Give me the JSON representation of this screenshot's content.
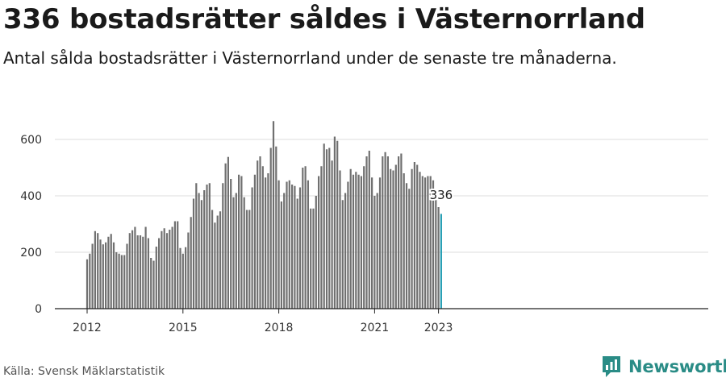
{
  "title": "336 bostadsrätter såldes i Västernorrland",
  "subtitle": "Antal sålda bostadsrätter i Västernorrland under de senaste tre månaderna.",
  "source": "Källa: Svensk Mäklarstatistik",
  "brand": {
    "name": "Newsworthy",
    "color": "#2a8c86"
  },
  "chart_data": {
    "type": "bar",
    "title": "336 bostadsrätter såldes i Västernorrland",
    "subtitle": "Antal sålda bostadsrätter i Västernorrland under de senaste tre månaderna.",
    "x_start": "2012-01",
    "x_ticks": [
      "2012",
      "2015",
      "2018",
      "2021",
      "2023"
    ],
    "y_ticks": [
      0,
      200,
      400,
      600
    ],
    "ylim": [
      0,
      680
    ],
    "grid": true,
    "bar_color": "#707070",
    "highlight_color": "#2aa0b5",
    "annotation": {
      "label": "336",
      "value": 336
    },
    "values": [
      175,
      195,
      230,
      275,
      268,
      245,
      228,
      235,
      255,
      265,
      235,
      200,
      195,
      190,
      190,
      230,
      268,
      278,
      290,
      260,
      260,
      255,
      290,
      250,
      180,
      170,
      220,
      250,
      275,
      285,
      268,
      280,
      290,
      310,
      310,
      215,
      195,
      218,
      270,
      325,
      390,
      445,
      410,
      385,
      420,
      440,
      445,
      350,
      305,
      330,
      345,
      445,
      515,
      538,
      460,
      395,
      410,
      475,
      470,
      395,
      350,
      350,
      430,
      475,
      525,
      540,
      505,
      465,
      480,
      570,
      665,
      575,
      455,
      380,
      410,
      450,
      455,
      440,
      435,
      390,
      430,
      500,
      505,
      455,
      355,
      355,
      400,
      470,
      505,
      585,
      565,
      570,
      525,
      610,
      595,
      490,
      385,
      410,
      450,
      495,
      475,
      485,
      475,
      470,
      505,
      540,
      560,
      465,
      400,
      410,
      465,
      540,
      555,
      540,
      495,
      490,
      510,
      540,
      550,
      480,
      445,
      425,
      495,
      520,
      510,
      485,
      470,
      465,
      470,
      470,
      455,
      385,
      360,
      336
    ]
  }
}
